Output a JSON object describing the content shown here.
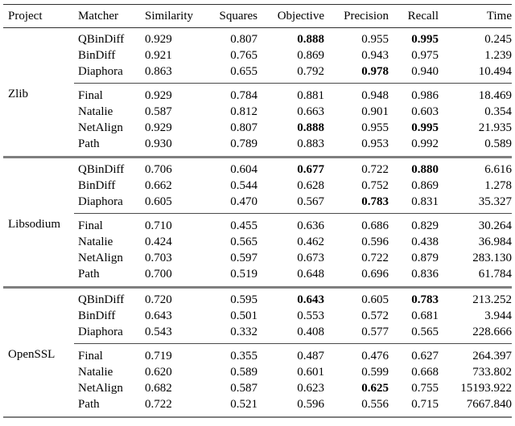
{
  "colors": {
    "background": "#ffffff",
    "text": "#000000",
    "rule-dark": "#2e2e2e",
    "rule-light": "#4a4a4a",
    "rule-heavy": "#7f7f7f"
  },
  "table": {
    "columns": [
      "Project",
      "Matcher",
      "Similarity",
      "Squares",
      "Objective",
      "Precision",
      "Recall",
      "Time"
    ],
    "groups": [
      {
        "project": "Zlib",
        "rows": [
          {
            "matcher": "QBinDiff",
            "similarity": "0.929",
            "squares": "0.807",
            "objective": "0.888",
            "precision": "0.955",
            "recall": "0.995",
            "time": "0.245",
            "bold": [
              "objective",
              "recall"
            ]
          },
          {
            "matcher": "BinDiff",
            "similarity": "0.921",
            "squares": "0.765",
            "objective": "0.869",
            "precision": "0.943",
            "recall": "0.975",
            "time": "1.239",
            "bold": []
          },
          {
            "matcher": "Diaphora",
            "similarity": "0.863",
            "squares": "0.655",
            "objective": "0.792",
            "precision": "0.978",
            "recall": "0.940",
            "time": "10.494",
            "bold": [
              "precision"
            ]
          },
          {
            "matcher": "Final",
            "similarity": "0.929",
            "squares": "0.784",
            "objective": "0.881",
            "precision": "0.948",
            "recall": "0.986",
            "time": "18.469",
            "bold": []
          },
          {
            "matcher": "Natalie",
            "similarity": "0.587",
            "squares": "0.812",
            "objective": "0.663",
            "precision": "0.901",
            "recall": "0.603",
            "time": "0.354",
            "bold": []
          },
          {
            "matcher": "NetAlign",
            "similarity": "0.929",
            "squares": "0.807",
            "objective": "0.888",
            "precision": "0.955",
            "recall": "0.995",
            "time": "21.935",
            "bold": [
              "objective",
              "recall"
            ]
          },
          {
            "matcher": "Path",
            "similarity": "0.930",
            "squares": "0.789",
            "objective": "0.883",
            "precision": "0.953",
            "recall": "0.992",
            "time": "0.589",
            "bold": []
          }
        ]
      },
      {
        "project": "Libsodium",
        "rows": [
          {
            "matcher": "QBinDiff",
            "similarity": "0.706",
            "squares": "0.604",
            "objective": "0.677",
            "precision": "0.722",
            "recall": "0.880",
            "time": "6.616",
            "bold": [
              "objective",
              "recall"
            ]
          },
          {
            "matcher": "BinDiff",
            "similarity": "0.662",
            "squares": "0.544",
            "objective": "0.628",
            "precision": "0.752",
            "recall": "0.869",
            "time": "1.278",
            "bold": []
          },
          {
            "matcher": "Diaphora",
            "similarity": "0.605",
            "squares": "0.470",
            "objective": "0.567",
            "precision": "0.783",
            "recall": "0.831",
            "time": "35.327",
            "bold": [
              "precision"
            ]
          },
          {
            "matcher": "Final",
            "similarity": "0.710",
            "squares": "0.455",
            "objective": "0.636",
            "precision": "0.686",
            "recall": "0.829",
            "time": "30.264",
            "bold": []
          },
          {
            "matcher": "Natalie",
            "similarity": "0.424",
            "squares": "0.565",
            "objective": "0.462",
            "precision": "0.596",
            "recall": "0.438",
            "time": "36.984",
            "bold": []
          },
          {
            "matcher": "NetAlign",
            "similarity": "0.703",
            "squares": "0.597",
            "objective": "0.673",
            "precision": "0.722",
            "recall": "0.879",
            "time": "283.130",
            "bold": []
          },
          {
            "matcher": "Path",
            "similarity": "0.700",
            "squares": "0.519",
            "objective": "0.648",
            "precision": "0.696",
            "recall": "0.836",
            "time": "61.784",
            "bold": []
          }
        ]
      },
      {
        "project": "OpenSSL",
        "rows": [
          {
            "matcher": "QBinDiff",
            "similarity": "0.720",
            "squares": "0.595",
            "objective": "0.643",
            "precision": "0.605",
            "recall": "0.783",
            "time": "213.252",
            "bold": [
              "objective",
              "recall"
            ]
          },
          {
            "matcher": "BinDiff",
            "similarity": "0.643",
            "squares": "0.501",
            "objective": "0.553",
            "precision": "0.572",
            "recall": "0.681",
            "time": "3.944",
            "bold": []
          },
          {
            "matcher": "Diaphora",
            "similarity": "0.543",
            "squares": "0.332",
            "objective": "0.408",
            "precision": "0.577",
            "recall": "0.565",
            "time": "228.666",
            "bold": []
          },
          {
            "matcher": "Final",
            "similarity": "0.719",
            "squares": "0.355",
            "objective": "0.487",
            "precision": "0.476",
            "recall": "0.627",
            "time": "264.397",
            "bold": []
          },
          {
            "matcher": "Natalie",
            "similarity": "0.620",
            "squares": "0.589",
            "objective": "0.601",
            "precision": "0.599",
            "recall": "0.668",
            "time": "733.802",
            "bold": []
          },
          {
            "matcher": "NetAlign",
            "similarity": "0.682",
            "squares": "0.587",
            "objective": "0.623",
            "precision": "0.625",
            "recall": "0.755",
            "time": "15193.922",
            "bold": [
              "precision"
            ]
          },
          {
            "matcher": "Path",
            "similarity": "0.722",
            "squares": "0.521",
            "objective": "0.596",
            "precision": "0.556",
            "recall": "0.715",
            "time": "7667.840",
            "bold": []
          }
        ]
      }
    ]
  }
}
